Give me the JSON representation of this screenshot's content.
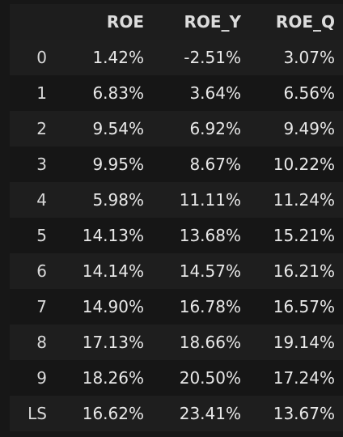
{
  "table": {
    "columns": [
      "",
      "ROE",
      "ROE_Y",
      "ROE_Q"
    ],
    "rows": [
      {
        "index": "0",
        "ROE": "1.42%",
        "ROE_Y": "-2.51%",
        "ROE_Q": "3.07%"
      },
      {
        "index": "1",
        "ROE": "6.83%",
        "ROE_Y": "3.64%",
        "ROE_Q": "6.56%"
      },
      {
        "index": "2",
        "ROE": "9.54%",
        "ROE_Y": "6.92%",
        "ROE_Q": "9.49%"
      },
      {
        "index": "3",
        "ROE": "9.95%",
        "ROE_Y": "8.67%",
        "ROE_Q": "10.22%"
      },
      {
        "index": "4",
        "ROE": "5.98%",
        "ROE_Y": "11.11%",
        "ROE_Q": "11.24%"
      },
      {
        "index": "5",
        "ROE": "14.13%",
        "ROE_Y": "13.68%",
        "ROE_Q": "15.21%"
      },
      {
        "index": "6",
        "ROE": "14.14%",
        "ROE_Y": "14.57%",
        "ROE_Q": "16.21%"
      },
      {
        "index": "7",
        "ROE": "14.90%",
        "ROE_Y": "16.78%",
        "ROE_Q": "16.57%"
      },
      {
        "index": "8",
        "ROE": "17.13%",
        "ROE_Y": "18.66%",
        "ROE_Q": "19.14%"
      },
      {
        "index": "9",
        "ROE": "18.26%",
        "ROE_Y": "20.50%",
        "ROE_Q": "17.24%"
      },
      {
        "index": "LS",
        "ROE": "16.62%",
        "ROE_Y": "23.41%",
        "ROE_Q": "13.67%"
      }
    ]
  },
  "colors": {
    "background": "#171717",
    "row_odd": "#1e1e1e",
    "row_even": "#161616",
    "text": "#e8e8e8"
  }
}
